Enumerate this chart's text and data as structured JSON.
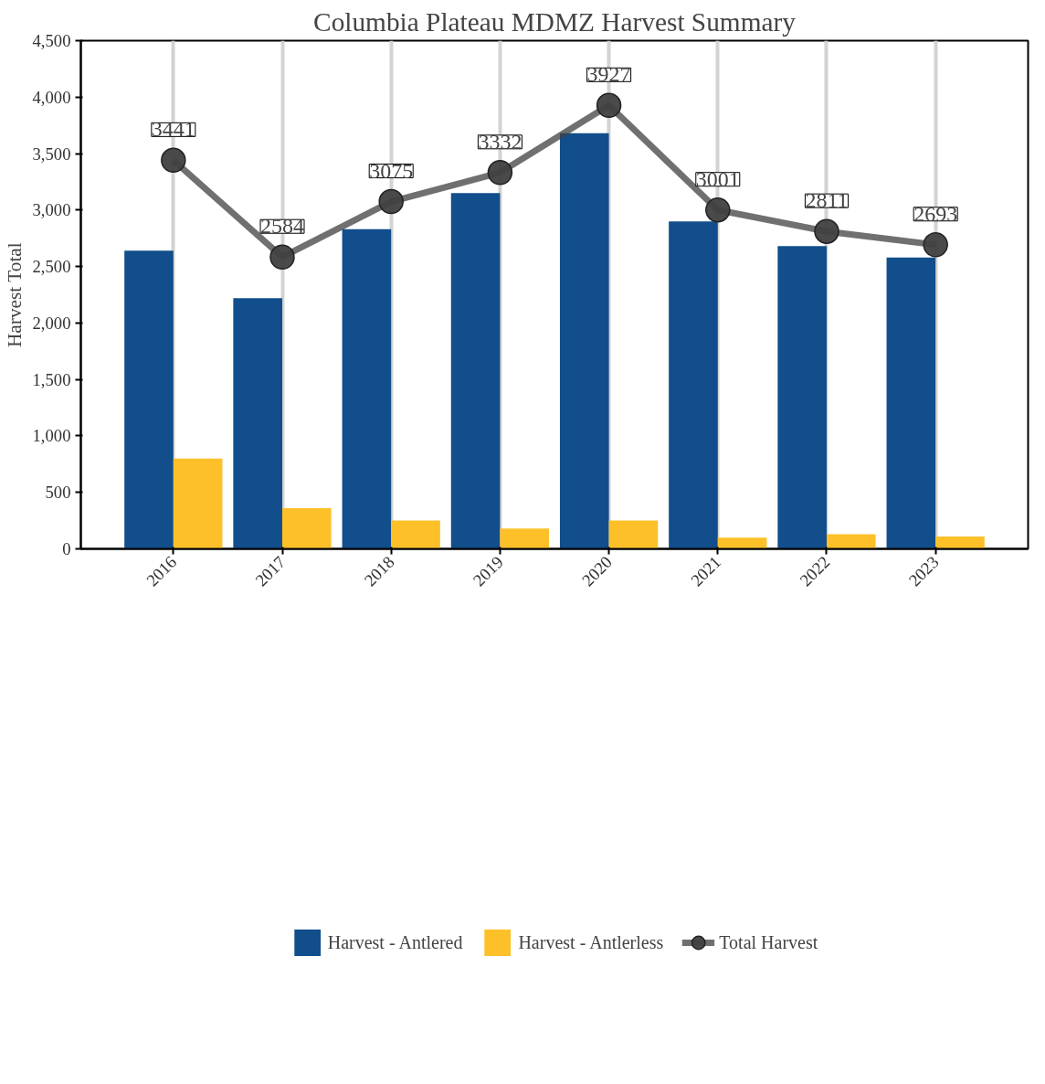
{
  "chart_data": {
    "type": "bar",
    "title": "Columbia Plateau MDMZ Harvest Summary",
    "ylabel": "Harvest Total",
    "categories": [
      "2016",
      "2017",
      "2018",
      "2019",
      "2020",
      "2021",
      "2022",
      "2023"
    ],
    "series": [
      {
        "name": "Harvest - Antlered",
        "color": "#114e8b",
        "values": [
          2640,
          2220,
          2830,
          3150,
          3680,
          2900,
          2680,
          2580
        ]
      },
      {
        "name": "Harvest - Antlerless",
        "color": "#fdc029",
        "values": [
          800,
          360,
          250,
          180,
          250,
          100,
          130,
          110
        ]
      },
      {
        "name": "Total Harvest",
        "type": "line",
        "color": "#404040",
        "values": [
          3441,
          2584,
          3075,
          3332,
          3927,
          3001,
          2811,
          2693
        ],
        "value_labels": [
          "3441",
          "2584",
          "3075",
          "3332",
          "3927",
          "3001",
          "2811",
          "2693"
        ]
      }
    ],
    "ylim": [
      0,
      4500
    ],
    "yticks": [
      0,
      {
        "value": 500,
        "label": "500"
      },
      {
        "value": 1000,
        "label": "1,000"
      },
      {
        "value": 1500,
        "label": "1,500"
      },
      {
        "value": 2000,
        "label": "2,000"
      },
      {
        "value": 2500,
        "label": "2,500"
      },
      {
        "value": 3000,
        "label": "3,000"
      },
      {
        "value": 3500,
        "label": "3,500"
      },
      {
        "value": 4000,
        "label": "4,000"
      },
      {
        "value": 4500,
        "label": "4,500"
      }
    ],
    "grid": "x",
    "legend": "bottom",
    "marker": "circle",
    "line_style": "solid"
  }
}
